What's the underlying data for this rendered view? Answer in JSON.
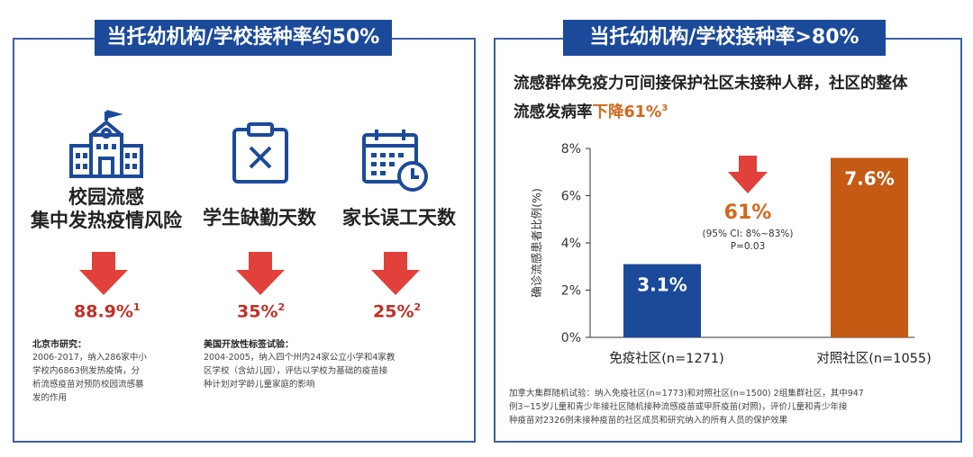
{
  "left": {
    "banner": "当托幼机构/学校接种率约50%",
    "items": [
      {
        "label_line1": "校园流感",
        "label_line2": "集中发热疫情风险",
        "value": "88.9%",
        "ref": "1",
        "note_title": "北京市研究：",
        "note": [
          "2006-2017，纳入286家中小",
          "学校内6863例发热疫情，分",
          "析流感疫苗对预防校园流感暴",
          "发的作用"
        ]
      },
      {
        "label_line1": "",
        "label_line2": "学生缺勤天数",
        "value": "35%",
        "ref": "2",
        "note_title": "美国开放性标签试验：",
        "note": [
          "2004-2005，纳入四个州内24家公立小学和4家教",
          "区学校（含幼儿园），评估以学校为基础的疫苗接",
          "种计划对学龄儿童家庭的影响"
        ]
      },
      {
        "label_line1": "",
        "label_line2": "家长误工天数",
        "value": "25%",
        "ref": "2"
      }
    ],
    "icons": [
      "school-icon",
      "clipboard-x-icon",
      "calendar-clock-icon",
      "down-arrow-icon"
    ]
  },
  "right": {
    "banner": "当托幼机构/学校接种率>80%",
    "claim_line1": "流感群体免疫力可间接保护社区未接种人群，社区的整体",
    "claim_line2_prefix": "流感发病率",
    "claim_highlight": "下降61%",
    "claim_ref": "3",
    "footnote": [
      "加拿大集群随机试验：纳入免疫社区(n=1773)和对照社区(n=1500) 2组集群社区，其中947",
      "例3~15岁儿童和青少年接社区随机接种流感疫苗或甲肝疫苗(对照)，评价儿童和青少年接",
      "种疫苗对2326例未接种疫苗的社区成员和研究纳入的所有人员的保护效果"
    ]
  },
  "chart_data": {
    "type": "bar",
    "categories": [
      "免疫社区(n=1271)",
      "对照社区(n=1055)"
    ],
    "values": [
      3.1,
      7.6
    ],
    "value_labels": [
      "3.1%",
      "7.6%"
    ],
    "bar_colors": [
      "#1b4a9b",
      "#c45a14"
    ],
    "ylabel": "确诊流感患者比例(%)",
    "ylim": [
      0,
      8
    ],
    "yticks": [
      0,
      2,
      4,
      6,
      8
    ],
    "ytick_labels": [
      "0%",
      "2%",
      "4%",
      "6%",
      "8%"
    ],
    "annotation": {
      "value": "61%",
      "ci": "(95% CI: 8%~83%)",
      "p": "P=0.03"
    }
  },
  "colors": {
    "banner": "#1b4a9b",
    "red": "#c22f26",
    "orange": "#d2691e"
  }
}
